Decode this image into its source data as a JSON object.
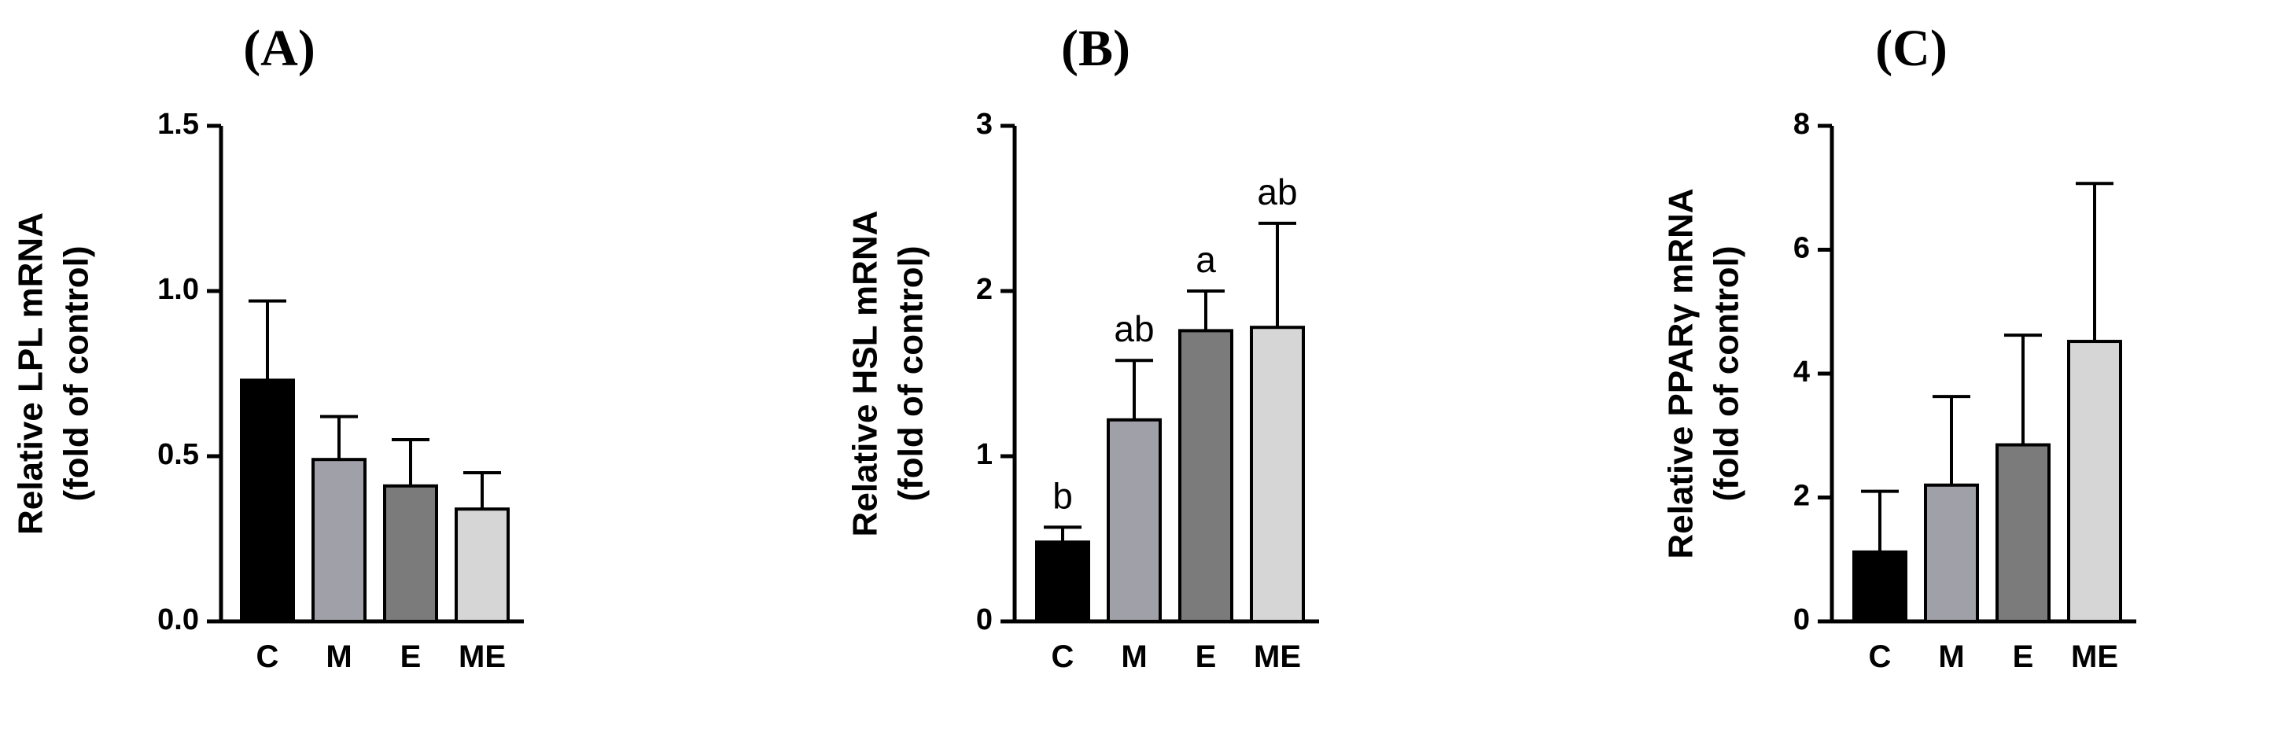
{
  "chart_data": [
    {
      "type": "bar",
      "panel": "(A)",
      "ylabel_line1": "Relative LPL mRNA",
      "ylabel_line2": "(fold of control)",
      "categories": [
        "C",
        "M",
        "E",
        "ME"
      ],
      "values": [
        0.73,
        0.49,
        0.41,
        0.34
      ],
      "errors": [
        0.24,
        0.13,
        0.14,
        0.11
      ],
      "significance": [
        "",
        "",
        "",
        ""
      ],
      "ylim": [
        0,
        1.5
      ],
      "yticks": [
        0,
        0.5,
        1.0,
        1.5
      ],
      "ytick_labels": [
        "0.0",
        "0.5",
        "1.0",
        "1.5"
      ],
      "bar_colors": [
        "#000000",
        "#a0a0a8",
        "#7b7b7b",
        "#d6d6d6"
      ]
    },
    {
      "type": "bar",
      "panel": "(B)",
      "ylabel_line1": "Relative HSL mRNA",
      "ylabel_line2": "(fold of control)",
      "categories": [
        "C",
        "M",
        "E",
        "ME"
      ],
      "values": [
        0.48,
        1.22,
        1.76,
        1.78
      ],
      "errors": [
        0.09,
        0.36,
        0.24,
        0.63
      ],
      "significance": [
        "b",
        "ab",
        "a",
        "ab"
      ],
      "ylim": [
        0,
        3
      ],
      "yticks": [
        0,
        1,
        2,
        3
      ],
      "ytick_labels": [
        "0",
        "1",
        "2",
        "3"
      ],
      "bar_colors": [
        "#000000",
        "#a0a0a8",
        "#7b7b7b",
        "#d6d6d6"
      ]
    },
    {
      "type": "bar",
      "panel": "(C)",
      "ylabel_line1": "Relative PPARγ mRNA",
      "ylabel_line2": "(fold of control)",
      "categories": [
        "C",
        "M",
        "E",
        "ME"
      ],
      "values": [
        1.12,
        2.2,
        2.85,
        4.52
      ],
      "errors": [
        0.98,
        1.43,
        1.77,
        2.55
      ],
      "significance": [
        "",
        "",
        "",
        ""
      ],
      "ylim": [
        0,
        8
      ],
      "yticks": [
        0,
        2,
        4,
        6,
        8
      ],
      "ytick_labels": [
        "0",
        "2",
        "4",
        "6",
        "8"
      ],
      "bar_colors": [
        "#000000",
        "#a0a0a8",
        "#7b7b7b",
        "#d6d6d6"
      ]
    }
  ]
}
